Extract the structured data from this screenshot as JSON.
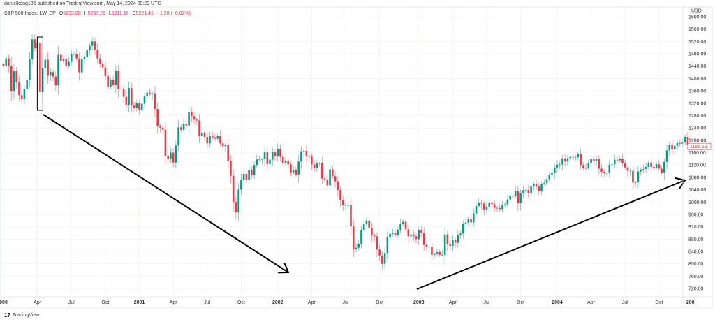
{
  "publisher_line": "danielkong135 published on TradingView.com, May 14, 2024 09:29 UTC",
  "legend": {
    "symbol": "S&P 500 Index, 1W, SP",
    "o_label": "O",
    "o": "5233.08",
    "h_label": "H",
    "h": "5237.26",
    "l_label": "L",
    "l": "5211.16",
    "c_label": "C",
    "c": "5221.41",
    "change": "−1.28 (−0.02%)"
  },
  "footer": {
    "logo": "17",
    "brand": "TradingView"
  },
  "colors": {
    "up": "#089981",
    "down": "#f23645",
    "grid": "#f0f3fa",
    "drawing": "#000000"
  },
  "chart_data": {
    "type": "candlestick",
    "interval": "1W",
    "currency": "USD",
    "last_price_label": "1186.19",
    "ylim": [
      700,
      1620
    ],
    "y_ticks": [
      720,
      760,
      800,
      840,
      880,
      920,
      960,
      1000,
      1040,
      1080,
      1120,
      1160,
      1200,
      1240,
      1280,
      1320,
      1360,
      1400,
      1440,
      1480,
      1520,
      1560,
      1600
    ],
    "y_tick_labels": [
      "720.00",
      "760.00",
      "800.00",
      "840.00",
      "880.00",
      "920.00",
      "960.00",
      "1000.00",
      "1040.00",
      "1080.00",
      "1120.00",
      "1160.00",
      "1200.00",
      "1240.00",
      "1280.00",
      "1320.00",
      "1360.00",
      "1400.00",
      "1440.00",
      "1480.00",
      "1520.00",
      "1560.00",
      "1600.00"
    ],
    "x_tick_labels": [
      "000",
      "Apr",
      "Jul",
      "Oct",
      "2001",
      "Apr",
      "Jul",
      "Oct",
      "2002",
      "Apr",
      "Jul",
      "Oct",
      "2003",
      "Apr",
      "Jul",
      "Oct",
      "2004",
      "Apr",
      "Jul",
      "Oct",
      "200"
    ],
    "x_tick_week_index": [
      0,
      13,
      26,
      39,
      52,
      65,
      78,
      91,
      105,
      118,
      131,
      144,
      159,
      172,
      185,
      198,
      212,
      225,
      238,
      251,
      263
    ],
    "weekly_close": [
      1441,
      1465,
      1441,
      1360,
      1424,
      1387,
      1346,
      1333,
      1366,
      1395,
      1464,
      1527,
      1498,
      1516,
      1357,
      1434,
      1461,
      1409,
      1421,
      1406,
      1378,
      1477,
      1456,
      1464,
      1441,
      1454,
      1478,
      1480,
      1465,
      1420,
      1462,
      1471,
      1491,
      1506,
      1520,
      1494,
      1465,
      1448,
      1436,
      1408,
      1374,
      1396,
      1379,
      1426,
      1365,
      1367,
      1341,
      1315,
      1369,
      1312,
      1305,
      1320,
      1298,
      1318,
      1342,
      1354,
      1349,
      1352,
      1301,
      1246,
      1241,
      1234,
      1150,
      1139,
      1160,
      1128,
      1183,
      1242,
      1234,
      1253,
      1248,
      1292,
      1278,
      1267,
      1264,
      1214,
      1225,
      1211,
      1190,
      1215,
      1210,
      1205,
      1214,
      1190,
      1181,
      1185,
      1134,
      1085,
      1000,
      966,
      1040,
      1071,
      1091,
      1073,
      1104,
      1087,
      1120,
      1138,
      1139,
      1139,
      1161,
      1123,
      1137,
      1161,
      1148,
      1172,
      1146,
      1127,
      1133,
      1122,
      1096,
      1104,
      1089,
      1131,
      1164,
      1166,
      1148,
      1147,
      1122,
      1111,
      1126,
      1125,
      1076,
      1073,
      1054,
      1106,
      1084,
      1067,
      1039,
      1007,
      989,
      990,
      990,
      921,
      847,
      852,
      865,
      908,
      928,
      940,
      917,
      893,
      889,
      846,
      827,
      800,
      835,
      885,
      897,
      900,
      894,
      910,
      930,
      936,
      912,
      889,
      895,
      889,
      880,
      908,
      901,
      861,
      855,
      855,
      829,
      834,
      838,
      829,
      828,
      895,
      863,
      858,
      878,
      868,
      893,
      898,
      930,
      933,
      944,
      934,
      963,
      987,
      998,
      995,
      976,
      985,
      998,
      993,
      981,
      980,
      977,
      990,
      993,
      1008,
      1021,
      1018,
      1036,
      996,
      1029,
      1038,
      1039,
      1028,
      1050,
      1058,
      1050,
      1035,
      1058,
      1061,
      1074,
      1089,
      1095,
      1112,
      1121,
      1122,
      1141,
      1131,
      1142,
      1146,
      1144,
      1145,
      1156,
      1120,
      1110,
      1109,
      1127,
      1139,
      1134,
      1140,
      1108,
      1098,
      1094,
      1094,
      1121,
      1122,
      1137,
      1135,
      1141,
      1125,
      1112,
      1101,
      1101,
      1063,
      1064,
      1099,
      1105,
      1107,
      1114,
      1128,
      1114,
      1110,
      1122,
      1108,
      1095,
      1130,
      1167,
      1185,
      1170,
      1182,
      1191,
      1189,
      1195,
      1211,
      1186
    ],
    "drawings": [
      {
        "type": "rectangle",
        "around_week_index": 14
      },
      {
        "type": "arrow",
        "direction": "down"
      },
      {
        "type": "arrow",
        "direction": "up"
      }
    ]
  }
}
